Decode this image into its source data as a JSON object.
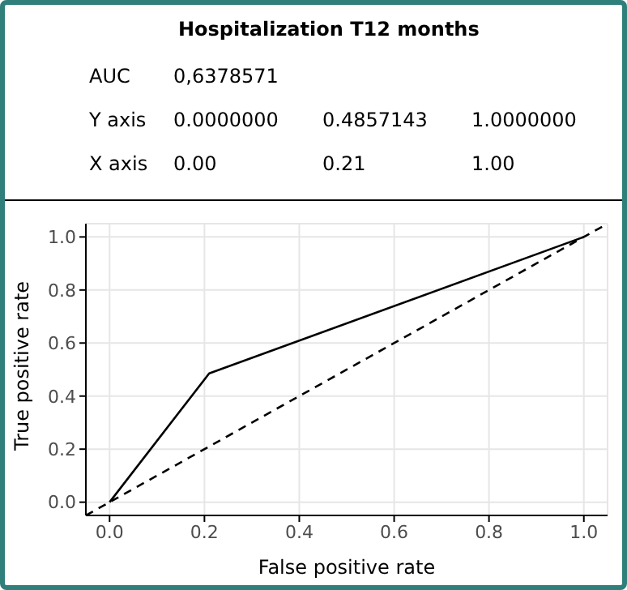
{
  "chart_data": {
    "type": "line",
    "title": "Hospitalization T12 months",
    "xlabel": "False positive rate",
    "ylabel": "True positive rate",
    "annotations": [
      "AUC",
      "0,6378571",
      "Y axis",
      "0.0000000",
      "0.4857143",
      "1.0000000",
      "X axis",
      "0.00",
      "0.21",
      "1.00"
    ],
    "series": [
      {
        "color": "#000000",
        "x": [
          0,
          0.21,
          1
        ],
        "values": [
          0,
          0.4857143,
          1
        ],
        "line_style": "solid"
      },
      {
        "color": "#000000",
        "x": [
          -0.05,
          1.05
        ],
        "values": [
          -0.05,
          1.05
        ],
        "line_style": "dashed"
      }
    ],
    "xlim": [
      -0.05,
      1.05
    ],
    "ylim": [
      -0.05,
      1.05
    ],
    "xticks": [
      {
        "value": 0,
        "label": "0.0"
      },
      {
        "value": 0.2,
        "label": "0.2"
      },
      {
        "value": 0.4,
        "label": "0.4"
      },
      {
        "value": 0.6,
        "label": "0.6"
      },
      {
        "value": 0.8,
        "label": "0.8"
      },
      {
        "value": 1,
        "label": "1.0"
      }
    ],
    "yticks": [
      {
        "value": 0,
        "label": "0.0"
      },
      {
        "value": 0.2,
        "label": "0.2"
      },
      {
        "value": 0.4,
        "label": "0.4"
      },
      {
        "value": 0.6,
        "label": "0.6"
      },
      {
        "value": 0.8,
        "label": "0.8"
      },
      {
        "value": 1,
        "label": "1.0"
      }
    ],
    "grid": true,
    "legend": false,
    "marker": "none"
  }
}
